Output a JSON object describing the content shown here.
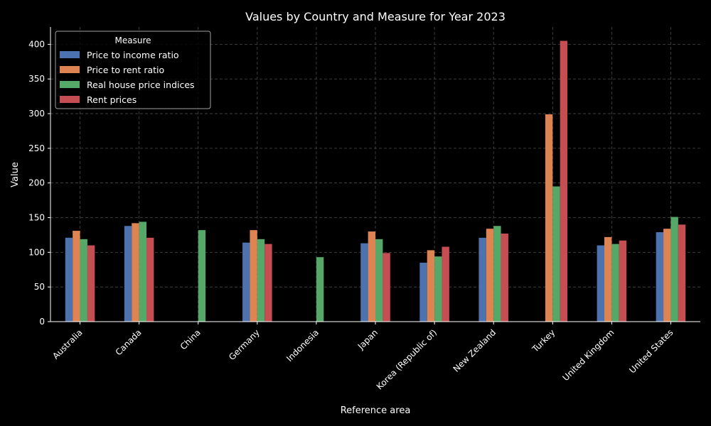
{
  "chart_data": {
    "type": "bar",
    "title": "Values by Country and Measure for Year 2023",
    "xlabel": "Reference area",
    "ylabel": "Value",
    "ylim": [
      0,
      425
    ],
    "yticks": [
      0,
      50,
      100,
      150,
      200,
      250,
      300,
      350,
      400
    ],
    "grid": true,
    "legend_title": "Measure",
    "legend_position": "top-left",
    "categories": [
      "Australia",
      "Canada",
      "China",
      "Germany",
      "Indonesia",
      "Japan",
      "Korea (Republic of)",
      "New Zealand",
      "Turkey",
      "United Kingdom",
      "United States"
    ],
    "series": [
      {
        "name": "Price to income ratio",
        "color": "#4c72b0",
        "values": [
          121,
          138,
          null,
          114,
          null,
          113,
          85,
          121,
          null,
          110,
          129
        ]
      },
      {
        "name": "Price to rent ratio",
        "color": "#dd8452",
        "values": [
          131,
          142,
          null,
          132,
          null,
          130,
          103,
          134,
          299,
          122,
          134
        ]
      },
      {
        "name": "Real house price indices",
        "color": "#55a868",
        "values": [
          119,
          144,
          132,
          119,
          93,
          119,
          94,
          138,
          195,
          112,
          151
        ]
      },
      {
        "name": "Rent prices",
        "color": "#c44e52",
        "values": [
          110,
          121,
          null,
          112,
          null,
          99,
          108,
          127,
          405,
          117,
          140
        ]
      }
    ]
  }
}
